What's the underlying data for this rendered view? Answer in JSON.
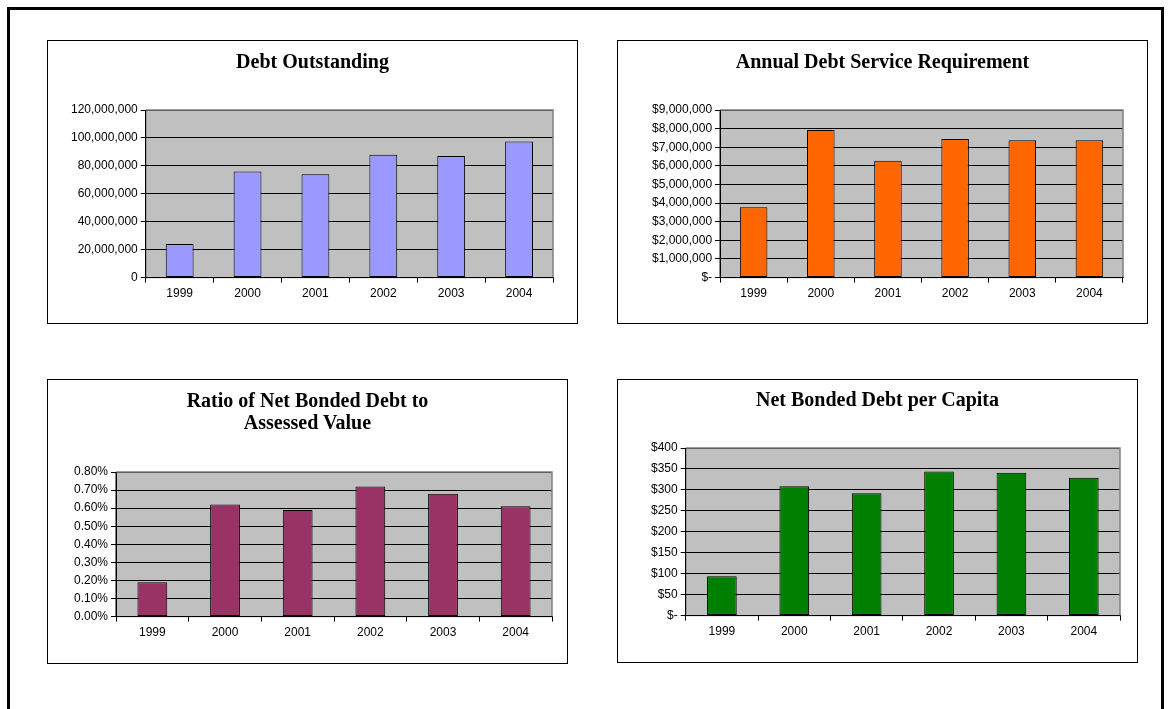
{
  "chart_data": [
    {
      "type": "bar",
      "title": "Debt Outstanding",
      "categories": [
        "1999",
        "2000",
        "2001",
        "2002",
        "2003",
        "2004"
      ],
      "values": [
        24000000,
        76000000,
        74000000,
        88000000,
        87000000,
        97500000
      ],
      "color": "#9999ff",
      "ylim": [
        0,
        120000000
      ],
      "yticks": [
        {
          "value": 0,
          "label": "0"
        },
        {
          "value": 20000000,
          "label": "20,000,000"
        },
        {
          "value": 40000000,
          "label": "40,000,000"
        },
        {
          "value": 60000000,
          "label": "60,000,000"
        },
        {
          "value": 80000000,
          "label": "80,000,000"
        },
        {
          "value": 100000000,
          "label": "100,000,000"
        },
        {
          "value": 120000000,
          "label": "120,000,000"
        }
      ],
      "grid": "y"
    },
    {
      "type": "bar",
      "title": "Annual Debt Service Requirement",
      "categories": [
        "1999",
        "2000",
        "2001",
        "2002",
        "2003",
        "2004"
      ],
      "values": [
        3780000,
        7920000,
        6270000,
        7440000,
        7380000,
        7370000
      ],
      "color": "#ff6600",
      "ylim": [
        0,
        9000000
      ],
      "yticks": [
        {
          "value": 0,
          "label": "$-"
        },
        {
          "value": 1000000,
          "label": "$1,000,000"
        },
        {
          "value": 2000000,
          "label": "$2,000,000"
        },
        {
          "value": 3000000,
          "label": "$3,000,000"
        },
        {
          "value": 4000000,
          "label": "$4,000,000"
        },
        {
          "value": 5000000,
          "label": "$5,000,000"
        },
        {
          "value": 6000000,
          "label": "$6,000,000"
        },
        {
          "value": 7000000,
          "label": "$7,000,000"
        },
        {
          "value": 8000000,
          "label": "$8,000,000"
        },
        {
          "value": 9000000,
          "label": "$9,000,000"
        }
      ],
      "grid": "y"
    },
    {
      "type": "bar",
      "title": "Ratio of Net Bonded Debt to Assessed Value",
      "categories": [
        "1999",
        "2000",
        "2001",
        "2002",
        "2003",
        "2004"
      ],
      "values": [
        0.19,
        0.62,
        0.59,
        0.72,
        0.68,
        0.61
      ],
      "color": "#993366",
      "ylim": [
        0,
        0.8
      ],
      "yticks": [
        {
          "value": 0,
          "label": "0.00%"
        },
        {
          "value": 0.1,
          "label": "0.10%"
        },
        {
          "value": 0.2,
          "label": "0.20%"
        },
        {
          "value": 0.3,
          "label": "0.30%"
        },
        {
          "value": 0.4,
          "label": "0.40%"
        },
        {
          "value": 0.5,
          "label": "0.50%"
        },
        {
          "value": 0.6,
          "label": "0.60%"
        },
        {
          "value": 0.7,
          "label": "0.70%"
        },
        {
          "value": 0.8,
          "label": "0.80%"
        }
      ],
      "grid": "y"
    },
    {
      "type": "bar",
      "title": "Net Bonded Debt per Capita",
      "categories": [
        "1999",
        "2000",
        "2001",
        "2002",
        "2003",
        "2004"
      ],
      "values": [
        94,
        309,
        292,
        344,
        341,
        329
      ],
      "color": "#008000",
      "ylim": [
        0,
        400
      ],
      "yticks": [
        {
          "value": 0,
          "label": "$-"
        },
        {
          "value": 50,
          "label": "$50"
        },
        {
          "value": 100,
          "label": "$100"
        },
        {
          "value": 150,
          "label": "$150"
        },
        {
          "value": 200,
          "label": "$200"
        },
        {
          "value": 250,
          "label": "$250"
        },
        {
          "value": 300,
          "label": "$300"
        },
        {
          "value": 350,
          "label": "$350"
        },
        {
          "value": 400,
          "label": "$400"
        }
      ],
      "grid": "y"
    }
  ]
}
